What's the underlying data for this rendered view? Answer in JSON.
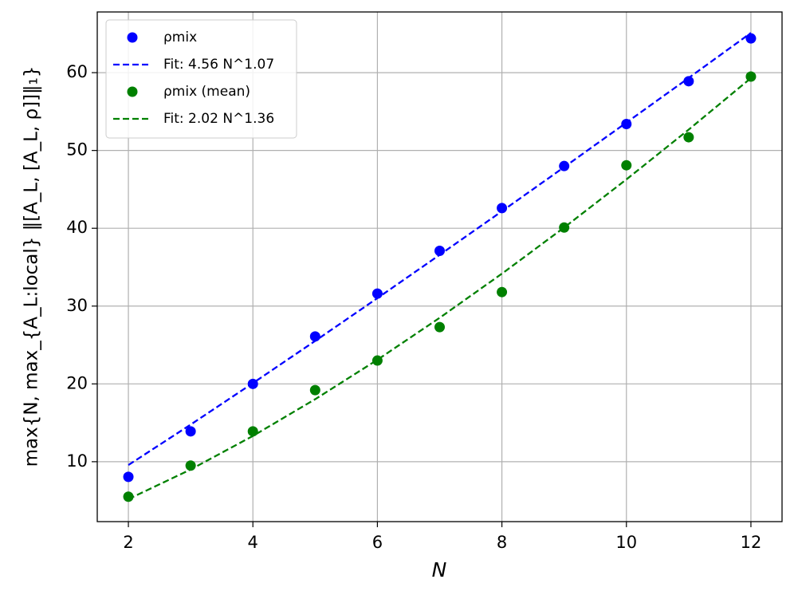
{
  "chart_data": {
    "type": "scatter",
    "x_label": "N",
    "y_label": "max{N, max_{A_L:local} ‖[A_L, [A_L, ρ]]‖₁}",
    "x": [
      2,
      3,
      4,
      5,
      6,
      7,
      8,
      9,
      10,
      11,
      12
    ],
    "series": [
      {
        "name": "ρmix",
        "color": "blue",
        "style": "markers",
        "values": [
          8.05,
          13.9,
          20.0,
          26.1,
          31.6,
          37.1,
          42.6,
          48.0,
          53.4,
          58.9,
          64.4
        ]
      },
      {
        "name": "Fit: 4.56 N^1.07",
        "color": "blue",
        "style": "dashed",
        "values": [
          9.57,
          14.77,
          20.1,
          25.52,
          31.02,
          36.58,
          42.19,
          47.86,
          53.58,
          59.32,
          65.11
        ]
      },
      {
        "name": "ρmix (mean)",
        "color": "green",
        "style": "markers",
        "values": [
          5.5,
          9.5,
          13.9,
          19.2,
          23.0,
          27.3,
          31.8,
          40.1,
          48.1,
          51.7,
          59.5
        ]
      },
      {
        "name": "Fit: 2.02 N^1.36",
        "color": "green",
        "style": "dashed",
        "values": [
          5.19,
          9.0,
          13.31,
          18.03,
          23.1,
          28.49,
          34.16,
          40.1,
          46.28,
          52.68,
          59.3
        ]
      }
    ],
    "xlim": [
      1.5,
      12.5
    ],
    "ylim": [
      2.3,
      67.8
    ],
    "xticks": [
      2,
      4,
      6,
      8,
      10,
      12
    ],
    "yticks": [
      10,
      20,
      30,
      40,
      50,
      60
    ],
    "grid": true,
    "legend": "upper left"
  }
}
